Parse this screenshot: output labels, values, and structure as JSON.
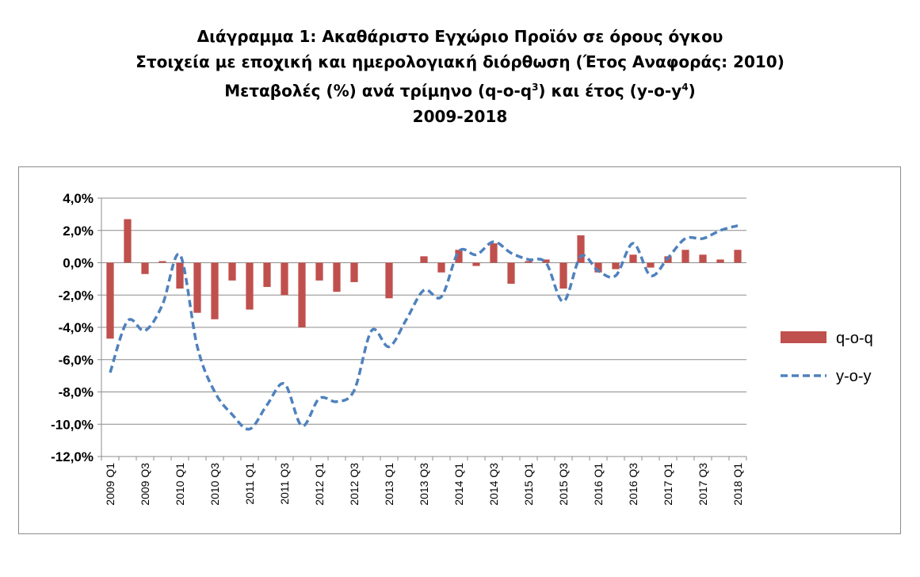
{
  "title": {
    "line1": "Διάγραμμα 1: Ακαθάριστο Εγχώριο Προϊόν σε όρους όγκου",
    "line2": "Στοιχεία με εποχική και ημερολογιακή διόρθωση (Έτος Αναφοράς: 2010)",
    "line3_main": "Μεταβολές (%) ανά τρίμηνο (q-o-q",
    "line3_sup1": "3",
    "line3_mid": ") και έτος (y-o-y",
    "line3_sup2": "4",
    "line3_end": ")",
    "line4": "2009-2018"
  },
  "colors": {
    "bar": "#c0504d",
    "line": "#4f81bd",
    "grid": "#8c8c8c"
  },
  "chart_data": {
    "type": "bar",
    "ylim": [
      -12,
      4
    ],
    "ytick_step": 2,
    "ytick_labels": [
      "4,0%",
      "2,0%",
      "0,0%",
      "-2,0%",
      "-4,0%",
      "-6,0%",
      "-8,0%",
      "-10,0%",
      "-12,0%"
    ],
    "grid": true,
    "legend_position": "right",
    "categories": [
      "2009 Q1",
      "2009 Q2",
      "2009 Q3",
      "2009 Q4",
      "2010 Q1",
      "2010 Q2",
      "2010 Q3",
      "2010 Q4",
      "2011 Q1",
      "2011 Q2",
      "2011 Q3",
      "2011 Q4",
      "2012 Q1",
      "2012 Q2",
      "2012 Q3",
      "2012 Q4",
      "2013 Q1",
      "2013 Q2",
      "2013 Q3",
      "2013 Q4",
      "2014 Q1",
      "2014 Q2",
      "2014 Q3",
      "2014 Q4",
      "2015 Q1",
      "2015 Q2",
      "2015 Q3",
      "2015 Q4",
      "2016 Q1",
      "2016 Q2",
      "2016 Q3",
      "2016 Q4",
      "2017 Q1",
      "2017 Q2",
      "2017 Q3",
      "2017 Q4",
      "2018 Q1"
    ],
    "xtick_labels": [
      "2009 Q1",
      "2009 Q3",
      "2010 Q1",
      "2010 Q3",
      "2011 Q1",
      "2011 Q3",
      "2012 Q1",
      "2012 Q3",
      "2013 Q1",
      "2013 Q3",
      "2014 Q1",
      "2014 Q3",
      "2015 Q1",
      "2015 Q3",
      "2016 Q1",
      "2016 Q3",
      "2017 Q1",
      "2017 Q3",
      "2018 Q1"
    ],
    "series": [
      {
        "name": "q-o-q",
        "type": "bar",
        "values": [
          -4.7,
          2.7,
          -0.7,
          0.1,
          -1.6,
          -3.1,
          -3.5,
          -1.1,
          -2.9,
          -1.5,
          -2.0,
          -4.0,
          -1.1,
          -1.8,
          -1.2,
          0.0,
          -2.2,
          0.0,
          0.4,
          -0.6,
          0.8,
          -0.2,
          1.2,
          -1.3,
          0.1,
          0.2,
          -1.6,
          1.7,
          -0.6,
          -0.4,
          0.5,
          -0.3,
          0.4,
          0.8,
          0.5,
          0.2,
          0.8
        ]
      },
      {
        "name": "y-o-y",
        "type": "line",
        "values": [
          -6.8,
          -3.6,
          -4.2,
          -2.6,
          0.5,
          -5.2,
          -8.0,
          -9.4,
          -10.3,
          -8.8,
          -7.5,
          -10.1,
          -8.4,
          -8.6,
          -7.9,
          -4.2,
          -5.2,
          -3.5,
          -1.7,
          -2.1,
          0.7,
          0.5,
          1.3,
          0.6,
          0.2,
          0.0,
          -2.4,
          0.4,
          -0.5,
          -0.8,
          1.2,
          -0.8,
          0.3,
          1.5,
          1.5,
          2.0,
          2.3
        ]
      }
    ]
  }
}
